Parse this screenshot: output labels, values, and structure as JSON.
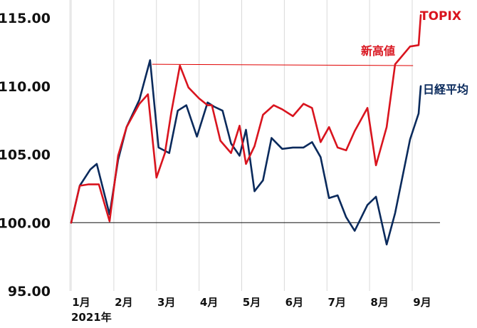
{
  "chart_data": {
    "type": "line",
    "y_ticks": [
      "95.00",
      "100.00",
      "105.00",
      "110.00",
      "115.00"
    ],
    "ylim": [
      95,
      116.2
    ],
    "x_range": [
      0.97,
      9.6
    ],
    "x_ticks": [
      {
        "label": "1月",
        "x": 1
      },
      {
        "label": "2月",
        "x": 2
      },
      {
        "label": "3月",
        "x": 3
      },
      {
        "label": "4月",
        "x": 4
      },
      {
        "label": "5月",
        "x": 5
      },
      {
        "label": "6月",
        "x": 6
      },
      {
        "label": "7月",
        "x": 7
      },
      {
        "label": "8月",
        "x": 8
      },
      {
        "label": "9月",
        "x": 9
      }
    ],
    "year_label": "2021年",
    "grid": "vertical",
    "baseline": 100,
    "reference_lines": [
      {
        "name": "新高値",
        "value": 111.6,
        "x_start": 2.9,
        "x_end": 9.02,
        "end_value": 111.5,
        "color": "#e00000"
      }
    ],
    "series": [
      {
        "name": "TOPIX",
        "color": "#d9141e",
        "x": [
          1.0,
          1.2,
          1.4,
          1.65,
          1.9,
          2.1,
          2.3,
          2.6,
          2.8,
          3.0,
          3.2,
          3.35,
          3.55,
          3.75,
          4.0,
          4.2,
          4.3,
          4.5,
          4.75,
          4.95,
          5.1,
          5.3,
          5.5,
          5.75,
          5.95,
          6.2,
          6.45,
          6.65,
          6.85,
          7.05,
          7.25,
          7.45,
          7.65,
          7.95,
          8.15,
          8.4,
          8.6,
          8.95,
          9.15,
          9.2
        ],
        "values": [
          100.0,
          102.7,
          102.8,
          102.8,
          100.1,
          104.9,
          107.0,
          108.7,
          109.4,
          103.3,
          105.1,
          108.1,
          111.5,
          109.9,
          109.1,
          108.6,
          108.6,
          106.0,
          105.1,
          107.1,
          104.3,
          105.6,
          107.9,
          108.6,
          108.3,
          107.8,
          108.7,
          108.4,
          105.9,
          107.0,
          105.5,
          105.3,
          106.7,
          108.4,
          104.2,
          107.0,
          111.6,
          112.9,
          113.0,
          115.2
        ]
      },
      {
        "name": "日経平均",
        "color": "#0a2a5c",
        "x": [
          1.0,
          1.2,
          1.45,
          1.6,
          1.9,
          2.1,
          2.3,
          2.6,
          2.85,
          3.05,
          3.3,
          3.5,
          3.7,
          3.95,
          4.2,
          4.35,
          4.55,
          4.75,
          4.95,
          5.1,
          5.3,
          5.5,
          5.7,
          5.95,
          6.2,
          6.45,
          6.65,
          6.85,
          7.05,
          7.25,
          7.45,
          7.65,
          7.95,
          8.15,
          8.4,
          8.6,
          8.95,
          9.15,
          9.2
        ],
        "values": [
          100.0,
          102.7,
          103.9,
          104.3,
          100.6,
          104.6,
          107.0,
          109.0,
          111.9,
          105.5,
          105.1,
          108.2,
          108.6,
          106.3,
          108.8,
          108.5,
          108.2,
          105.8,
          104.9,
          106.8,
          102.3,
          103.1,
          106.2,
          105.4,
          105.5,
          105.5,
          105.9,
          104.8,
          101.8,
          102.0,
          100.4,
          99.4,
          101.3,
          101.9,
          98.4,
          100.7,
          106.1,
          108.0,
          110.0
        ]
      }
    ],
    "series_labels": {
      "topix": "TOPIX",
      "nikkei": "日経平均",
      "new_high": "新高値"
    }
  }
}
